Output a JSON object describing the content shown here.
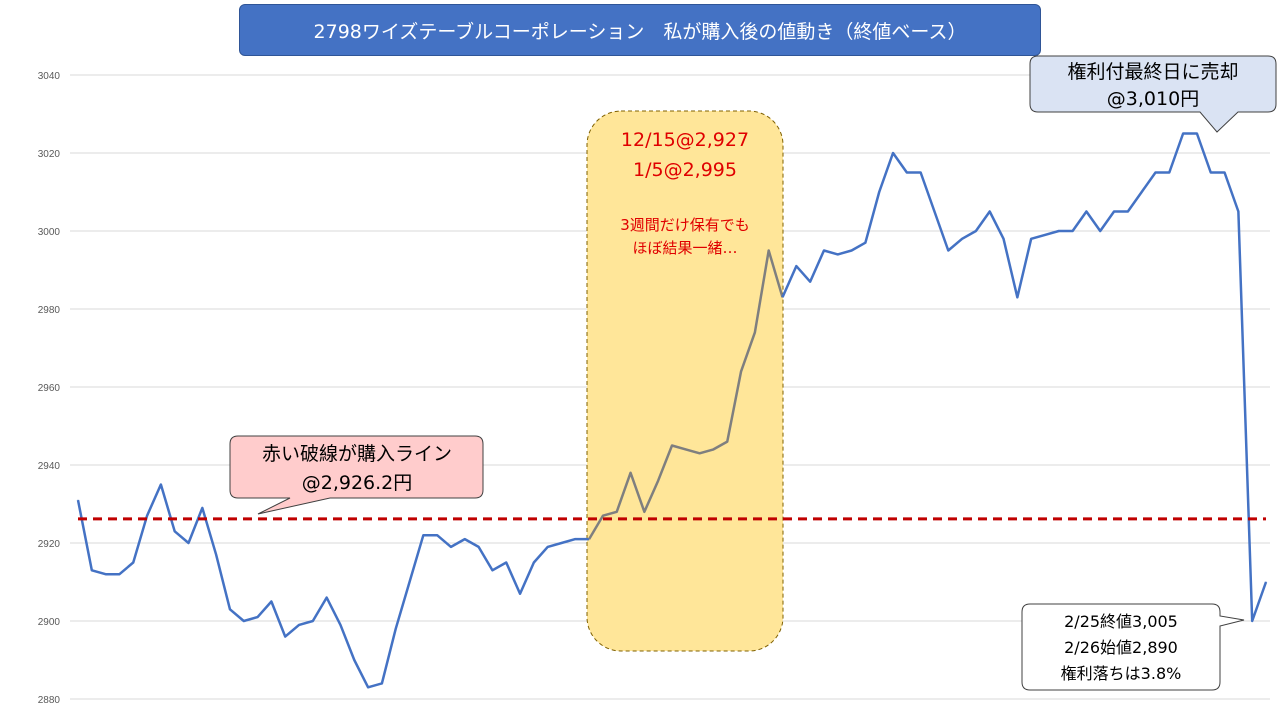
{
  "title": "2798ワイズテーブルコーポレーション　私が購入後の値動き（終値ベース）",
  "chart_data": {
    "type": "line",
    "ylim": [
      2880,
      3040
    ],
    "yticks": [
      2880,
      2900,
      2920,
      2940,
      2960,
      2980,
      3000,
      3020,
      3040
    ],
    "grid": true,
    "series": [
      {
        "values": [
          2931,
          2913,
          2912,
          2912,
          2915,
          2927,
          2935,
          2923,
          2920,
          2929,
          2917,
          2903,
          2900,
          2901,
          2905,
          2896,
          2899,
          2900,
          2906,
          2899,
          2890,
          2883,
          2884,
          2898,
          2910,
          2922,
          2922,
          2919,
          2921,
          2919,
          2913,
          2915,
          2907,
          2915,
          2919,
          2920,
          2921,
          2921,
          2927,
          2928,
          2938,
          2928,
          2936,
          2945,
          2944,
          2943,
          2944,
          2946,
          2964,
          2974,
          2995,
          2983,
          2991,
          2987,
          2995,
          2994,
          2995,
          2997,
          3010,
          3020,
          3015,
          3015,
          3005,
          2995,
          2998,
          3000,
          3005,
          2998,
          2983,
          2998,
          2999,
          3000,
          3000,
          3005,
          3000,
          3005,
          3005,
          3010,
          3015,
          3015,
          3025,
          3025,
          3015,
          3015,
          3005,
          2900,
          2910
        ],
        "color": "#4472c4",
        "highlight_range": [
          37,
          51
        ],
        "highlight_color": "#7f7f7f"
      }
    ],
    "reference_line": {
      "value": 2926.2,
      "color": "#c00000",
      "style": "dashed"
    },
    "highlight_box_color": "#ffe699"
  },
  "annotations": {
    "buy_line_label": [
      "赤い破線が購入ライン",
      "@2,926.2円"
    ],
    "sell_label": [
      "権利付最終日に売却",
      "@3,010円"
    ],
    "ex_rights_label": [
      "2/25終値3,005",
      "2/26始値2,890",
      "権利落ちは3.8%"
    ],
    "period_dates": [
      "12/15@2,927",
      "1/5@2,995"
    ],
    "period_note": [
      "3週間だけ保有でも",
      "ほぼ結果一緒…"
    ]
  }
}
